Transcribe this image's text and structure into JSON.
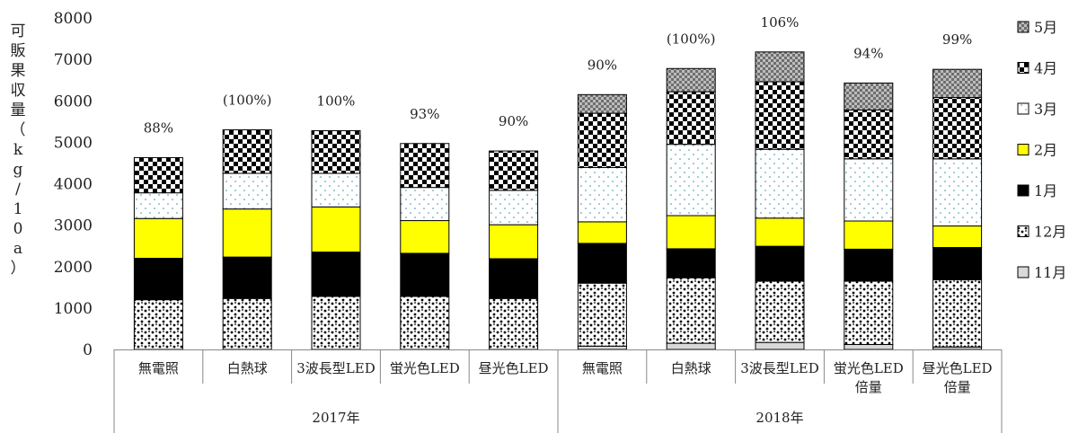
{
  "chart_data": {
    "type": "bar",
    "stacked": true,
    "ylabel": "可販果収量（kg/10a）",
    "ylim": [
      0,
      8000
    ],
    "yticks": [
      0,
      1000,
      2000,
      3000,
      4000,
      5000,
      6000,
      7000,
      8000
    ],
    "ytick_labels": [
      "0",
      "1000",
      "2000",
      "3000",
      "4000",
      "5000",
      "6000",
      "7000",
      "8000"
    ],
    "grid": false,
    "legend_position": "right",
    "categories": [
      "無電照",
      "白熱球",
      "3波長型LED",
      "蛍光色LED",
      "昼光色LED",
      "無電照",
      "白熱球",
      "3波長型LED",
      "蛍光色LED\n倍量",
      "昼光色LED\n倍量"
    ],
    "groups": [
      {
        "label": "2017年",
        "count": 5
      },
      {
        "label": "2018年",
        "count": 5
      }
    ],
    "bar_labels": [
      "88%",
      "(100%)",
      "100%",
      "93%",
      "90%",
      "90%",
      "(100%)",
      "106%",
      "94%",
      "99%"
    ],
    "series": [
      {
        "name": "11月",
        "pattern": "light-gray",
        "values": [
          0,
          0,
          0,
          0,
          0,
          80,
          150,
          170,
          120,
          60
        ]
      },
      {
        "name": "12月",
        "pattern": "dots",
        "values": [
          1200,
          1230,
          1280,
          1280,
          1230,
          1520,
          1580,
          1480,
          1530,
          1620
        ]
      },
      {
        "name": "1月",
        "pattern": "black",
        "values": [
          1000,
          1000,
          1070,
          1040,
          960,
          960,
          700,
          840,
          770,
          780
        ]
      },
      {
        "name": "2月",
        "pattern": "yellow",
        "values": [
          960,
          1160,
          1090,
          790,
          820,
          520,
          800,
          680,
          680,
          520
        ]
      },
      {
        "name": "3月",
        "pattern": "sparse-dots",
        "values": [
          620,
          860,
          810,
          800,
          830,
          1310,
          1720,
          1660,
          1500,
          1620
        ]
      },
      {
        "name": "4月",
        "pattern": "checker",
        "values": [
          850,
          1050,
          1030,
          1060,
          950,
          1310,
          1270,
          1630,
          1180,
          1480
        ]
      },
      {
        "name": "5月",
        "pattern": "gray-checker",
        "values": [
          0,
          0,
          0,
          0,
          0,
          450,
          560,
          720,
          650,
          680
        ]
      }
    ]
  }
}
